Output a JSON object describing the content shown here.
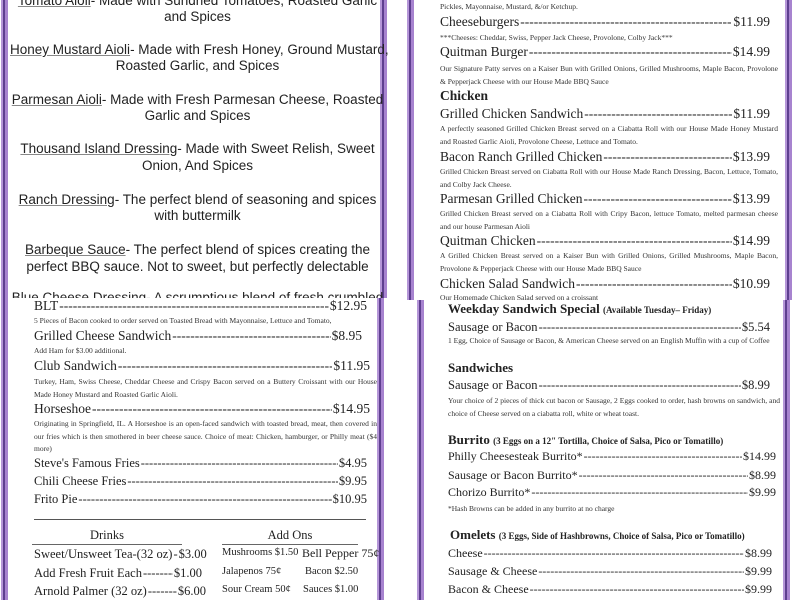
{
  "sauces": [
    {
      "name": "Tomato Aioli",
      "desc": "- Made with Sundried Tomatoes, Roasted Garlic",
      "desc2": "and Spices"
    },
    {
      "name": "Honey Mustard Aioli",
      "desc": "- Made with Fresh Honey, Ground Mustard,",
      "desc2": "Roasted Garlic, and Spices"
    },
    {
      "name": "Parmesan Aioli",
      "desc": "- Made with Fresh Parmesan Cheese, Roasted",
      "desc2": "Garlic and Spices"
    },
    {
      "name": "Thousand Island Dressing",
      "desc": "- Made with Sweet Relish, Sweet",
      "desc2": "Onion, And Spices"
    },
    {
      "name": "Ranch Dressing",
      "desc": "- The perfect blend of seasoning and spices",
      "desc2": "with buttermilk"
    },
    {
      "name": "Barbeque Sauce",
      "desc": "- The perfect blend of spices creating the",
      "desc2": "perfect BBQ sauce. Not to sweet, but perfectly delectable"
    },
    {
      "name": "Blue Cheese Dressing",
      "desc": "- A scrumptious blend of fresh crumbled"
    }
  ],
  "burgers": {
    "top_desc": "Pickles, Mayonnaise, Mustard, &/or Ketchup.",
    "items": [
      {
        "name": "Cheeseburgers",
        "price": "$11.99",
        "desc": "***Cheeses: Cheddar, Swiss, Pepper Jack Cheese, Provolone, Colby Jack***"
      },
      {
        "name": "Quitman Burger",
        "price": "$14.99",
        "desc": "Our Signature Patty serves on a Kaiser Bun with Grilled Onions, Grilled Mushrooms, Maple Bacon, Provolone & Pepperjack Cheese with our House Made BBQ Sauce"
      }
    ]
  },
  "chicken": {
    "heading": "Chicken",
    "items": [
      {
        "name": "Grilled Chicken Sandwich",
        "price": "$11.99",
        "desc": "A perfectly seasoned Grilled Chicken Breast served on a Ciabatta Roll with our House Made Honey Mustard and Roasted Garlic Aioli, Provolone Cheese, Lettuce and Tomato."
      },
      {
        "name": "Bacon Ranch Grilled Chicken",
        "price": "$13.99",
        "desc": "Grilled Chicken Breast served on Ciabatta Roll with our House Made Ranch Dressing, Bacon, Lettuce, Tomato, and Colby Jack Cheese."
      },
      {
        "name": "Parmesan Grilled Chicken",
        "price": "$13.99",
        "desc": "Grilled Chicken Breast served on a Ciabatta Roll with Cripy Bacon, lettuce Tomato, melted parmesan cheese and our house Parmesan Aioli"
      },
      {
        "name": "Quitman Chicken",
        "price": "$14.99",
        "desc": "A Grilled Chicken Breast served on a Kaiser Bun with Grilled Onions, Grilled Mushrooms, Maple Bacon, Provolone & Pepperjack Cheese with our House Made BBQ Sauce"
      },
      {
        "name": "Chicken Salad Sandwich",
        "price": "$10.99",
        "desc": "Our Homemade Chicken Salad served on a croissant"
      }
    ]
  },
  "sandwiches": {
    "items": [
      {
        "name": "BLT",
        "price": "$12.95",
        "desc": "5 Pieces of Bacon cooked to order served on Toasted Bread with Mayonnaise, Lettuce and Tomato,"
      },
      {
        "name": "Grilled Cheese Sandwich",
        "price": "$8.95",
        "desc": "Add Ham for $3.00 additional."
      },
      {
        "name": "Club Sandwich",
        "price": "$11.95",
        "desc": "Turkey, Ham, Swiss Cheese, Cheddar Cheese and Crispy Bacon served on a Buttery Croissant with our House Made Honey Mustard and Roasted Garlic Aioli."
      },
      {
        "name": "Horseshoe",
        "price": "$14.95",
        "desc": "Originating in Springfield, IL. A Horseshoe is an open-faced sandwich with toasted bread, meat, then covered in our fries which is then smothered in beer cheese sauce. Choice of meat: Chicken, hamburger, or Philly meat ($4 more)"
      }
    ],
    "sides": [
      {
        "name": "Steve's Famous Fries",
        "price": "$4.95"
      },
      {
        "name": "Chili Cheese Fries",
        "price": "$9.95"
      },
      {
        "name": "Frito Pie",
        "price": "$10.95"
      }
    ]
  },
  "drinks": {
    "heading": "Drinks",
    "items": [
      {
        "name": "Sweet/Unsweet Tea-(32 oz)",
        "price": "$3.00"
      },
      {
        "name": "Add Fresh Fruit Each",
        "price": "$1.00"
      },
      {
        "name": "Arnold Palmer (32 oz)",
        "price": "$6.00"
      }
    ]
  },
  "addons": {
    "heading": "Add Ons",
    "rows": [
      [
        "Mushrooms $1.50",
        "Bell Pepper 75¢"
      ],
      [
        "Jalapenos 75¢",
        "Bacon $2.50"
      ],
      [
        "Sour Cream 50¢",
        "Sauces $1.00"
      ]
    ]
  },
  "breakfast": {
    "special": {
      "heading": "Weekday Sandwich Special",
      "note": "(Available Tuesday– Friday)",
      "name": "Sausage or Bacon",
      "price": "$5.54",
      "desc": "1 Egg, Choice of Sausage or Bacon, & American Cheese served on an English Muffin with a cup of Coffee"
    },
    "sandwiches": {
      "heading": "Sandwiches",
      "name": "Sausage or Bacon",
      "price": "$8.99",
      "desc": "Your choice of 2 pieces of thick cut bacon or Sausage, 2 Eggs cooked to order, hash browns on sandwich, and choice of Cheese served on a ciabatta roll, white or wheat toast."
    },
    "burrito": {
      "heading": "Burrito",
      "note": "(3 Eggs on a 12\" Tortilla, Choice of Salsa, Pico or Tomatillo)",
      "items": [
        {
          "name": "Philly Cheesesteak Burrito*",
          "price": "$14.99"
        },
        {
          "name": "Sausage or Bacon Burrito*",
          "price": "$8.99"
        },
        {
          "name": "Chorizo Burrito*",
          "price": "$9.99"
        }
      ],
      "footnote": "*Hash Browns can be added in any burrito at no charge"
    },
    "omelets": {
      "heading": "Omelets",
      "note": "(3 Eggs, Side of Hashbrowns, Choice of Salsa, Pico or Tomatillo)",
      "items": [
        {
          "name": "Cheese",
          "price": "$8.99"
        },
        {
          "name": "Sausage & Cheese",
          "price": "$9.99"
        },
        {
          "name": "Bacon & Cheese",
          "price": "$9.99"
        }
      ]
    }
  },
  "colors": {
    "border_purple": "#5e3f8f",
    "border_lavender": "#a783cf",
    "text": "#222222"
  }
}
